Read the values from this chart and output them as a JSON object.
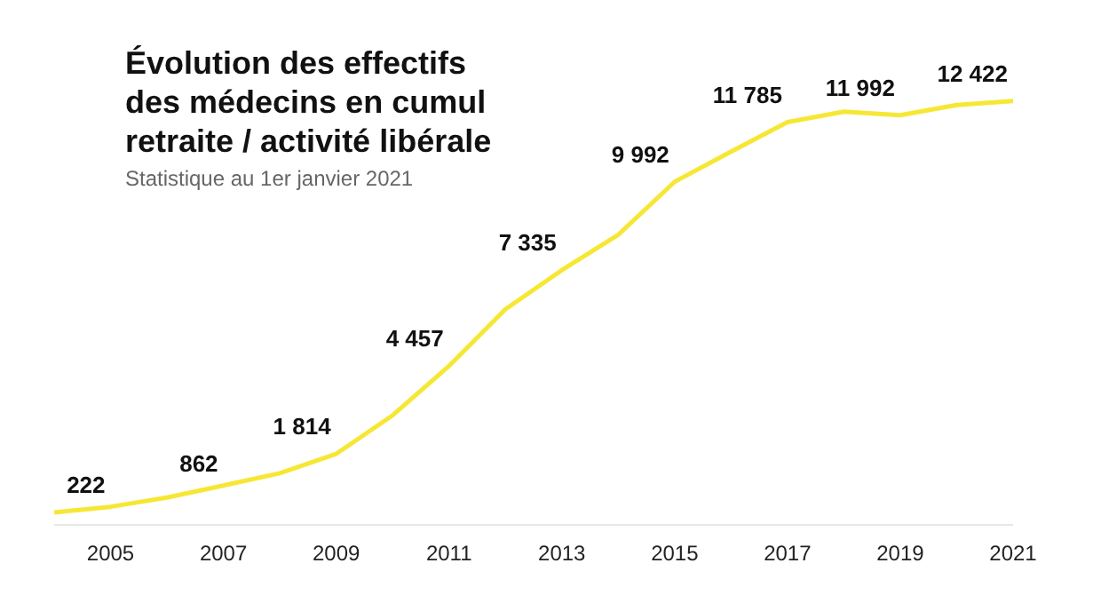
{
  "chart_data": {
    "type": "line",
    "title": "Évolution des effectifs\ndes médecins en cumul\nretraite / activité libérale",
    "subtitle": "Statistique au 1er janvier 2021",
    "x": [
      2004,
      2005,
      2006,
      2007,
      2008,
      2009,
      2010,
      2011,
      2012,
      2013,
      2014,
      2015,
      2016,
      2017,
      2018,
      2019,
      2020,
      2021
    ],
    "series": [
      {
        "color": "#f7e735",
        "values": [
          50,
          222,
          500,
          862,
          1230,
          1814,
          2970,
          4457,
          6160,
          7335,
          8400,
          9992,
          10900,
          11785,
          12100,
          11992,
          12300,
          12422
        ],
        "value_labels": [
          null,
          "222",
          null,
          "862",
          null,
          "1 814",
          null,
          "4 457",
          null,
          "7 335",
          null,
          "9 992",
          null,
          "11 785",
          null,
          "11 992",
          null,
          "12 422"
        ]
      }
    ],
    "xlim": [
      2004,
      2021
    ],
    "xticks": [
      2005,
      2007,
      2009,
      2011,
      2013,
      2015,
      2017,
      2019,
      2021
    ],
    "tick_labels": "x",
    "grid": false,
    "marker": "none",
    "line_style": "solid"
  }
}
